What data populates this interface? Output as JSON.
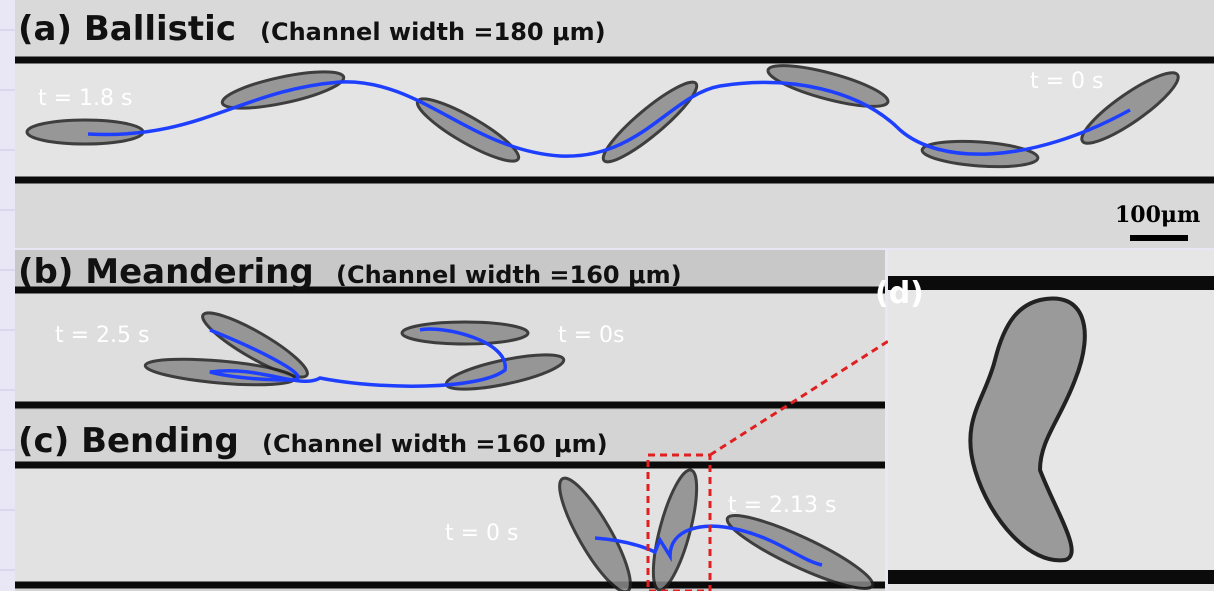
{
  "panels": [
    {
      "label": "(a) Ballistic",
      "subtitle": "(Channel width =180 μm)",
      "times": [
        "t = 1.8 s",
        "t = 0 s"
      ],
      "scale_bar": "100μm"
    },
    {
      "label": "(b) Meandering",
      "subtitle": "(Channel width =160 μm)",
      "times": [
        "t = 2.5 s",
        "t = 0s"
      ]
    },
    {
      "label": "(c) Bending",
      "subtitle": "(Channel width =160 μm)",
      "times": [
        "t = 0 s",
        "t = 2.13 s"
      ]
    },
    {
      "label": "(d)"
    }
  ]
}
